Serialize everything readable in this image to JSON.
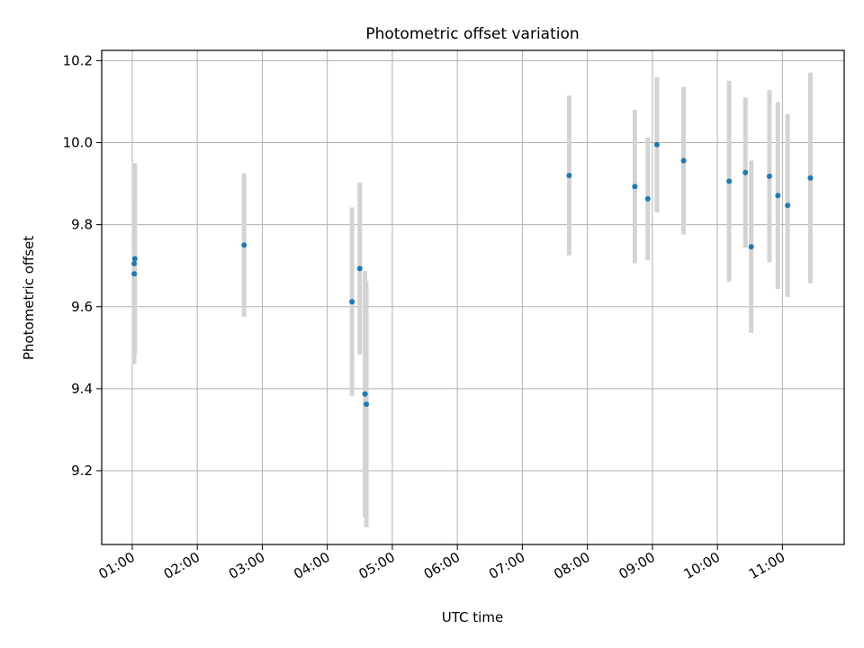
{
  "chart_data": {
    "type": "scatter",
    "title": "Photometric offset variation",
    "xlabel": "UTC time",
    "ylabel": "Photometric offset",
    "x_unit": "hours UTC",
    "xlim": [
      0.53,
      11.95
    ],
    "ylim": [
      9.02,
      10.225
    ],
    "grid": true,
    "x_ticks": [
      {
        "value": 1,
        "label": "01:00"
      },
      {
        "value": 2,
        "label": "02:00"
      },
      {
        "value": 3,
        "label": "03:00"
      },
      {
        "value": 4,
        "label": "04:00"
      },
      {
        "value": 5,
        "label": "05:00"
      },
      {
        "value": 6,
        "label": "06:00"
      },
      {
        "value": 7,
        "label": "07:00"
      },
      {
        "value": 8,
        "label": "08:00"
      },
      {
        "value": 9,
        "label": "09:00"
      },
      {
        "value": 10,
        "label": "10:00"
      },
      {
        "value": 11,
        "label": "11:00"
      }
    ],
    "y_ticks": [
      {
        "value": 9.2,
        "label": "9.2"
      },
      {
        "value": 9.4,
        "label": "9.4"
      },
      {
        "value": 9.6,
        "label": "9.6"
      },
      {
        "value": 9.8,
        "label": "9.8"
      },
      {
        "value": 10.0,
        "label": "10.0"
      },
      {
        "value": 10.2,
        "label": "10.2"
      }
    ],
    "series": [
      {
        "marker_color": "#1f77b4",
        "errorbar_color": "#d3d3d3",
        "points": [
          {
            "x": 1.03,
            "y": 9.705,
            "err": 0.245
          },
          {
            "x": 1.04,
            "y": 9.717,
            "err": 0.232
          },
          {
            "x": 1.03,
            "y": 9.68,
            "err": 0.19
          },
          {
            "x": 2.72,
            "y": 9.75,
            "err": 0.175
          },
          {
            "x": 4.38,
            "y": 9.612,
            "err": 0.23
          },
          {
            "x": 4.5,
            "y": 9.693,
            "err": 0.21
          },
          {
            "x": 4.58,
            "y": 9.387,
            "err": 0.3
          },
          {
            "x": 4.6,
            "y": 9.362,
            "err": 0.3
          },
          {
            "x": 7.72,
            "y": 9.92,
            "err": 0.195
          },
          {
            "x": 8.73,
            "y": 9.893,
            "err": 0.187
          },
          {
            "x": 8.93,
            "y": 9.863,
            "err": 0.15
          },
          {
            "x": 9.07,
            "y": 9.995,
            "err": 0.165
          },
          {
            "x": 9.48,
            "y": 9.956,
            "err": 0.18
          },
          {
            "x": 10.18,
            "y": 9.906,
            "err": 0.245
          },
          {
            "x": 10.43,
            "y": 9.927,
            "err": 0.183
          },
          {
            "x": 10.52,
            "y": 9.746,
            "err": 0.21
          },
          {
            "x": 10.8,
            "y": 9.918,
            "err": 0.21
          },
          {
            "x": 10.93,
            "y": 9.871,
            "err": 0.228
          },
          {
            "x": 11.08,
            "y": 9.847,
            "err": 0.223
          },
          {
            "x": 11.43,
            "y": 9.914,
            "err": 0.257
          }
        ]
      }
    ]
  }
}
